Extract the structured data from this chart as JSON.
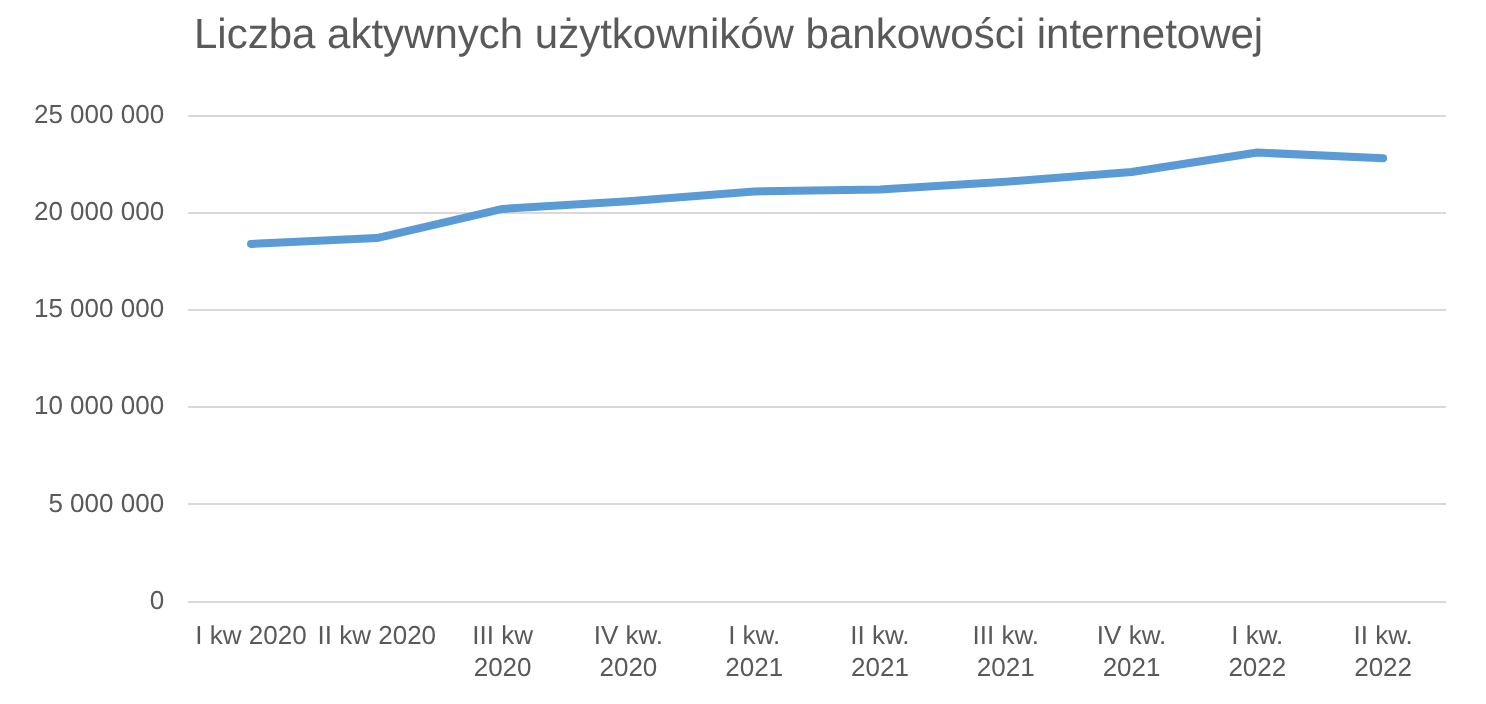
{
  "chart_data": {
    "type": "line",
    "title": "Liczba aktywnych użytkowników bankowości internetowej",
    "categories": [
      "I kw 2020",
      "II kw 2020",
      "III kw\n2020",
      "IV kw.\n2020",
      "I kw.\n2021",
      "II kw.\n2021",
      "III kw.\n2021",
      "IV kw.\n2021",
      "I kw.\n2022",
      "II kw.\n2022"
    ],
    "series": [
      {
        "color": "#5b9bd5",
        "values": [
          18400000,
          18700000,
          20200000,
          20600000,
          21100000,
          21200000,
          21600000,
          22100000,
          23100000,
          22800000
        ]
      }
    ],
    "ylim": [
      0,
      25000000
    ],
    "yticks": [
      {
        "value": 0,
        "label": "0"
      },
      {
        "value": 5000000,
        "label": "5 000 000"
      },
      {
        "value": 10000000,
        "label": "10 000 000"
      },
      {
        "value": 15000000,
        "label": "15 000 000"
      },
      {
        "value": 20000000,
        "label": "20 000 000"
      },
      {
        "value": 25000000,
        "label": "25 000 000"
      }
    ],
    "grid": "y",
    "legend": false,
    "marker": "none",
    "line_style": "solid"
  }
}
